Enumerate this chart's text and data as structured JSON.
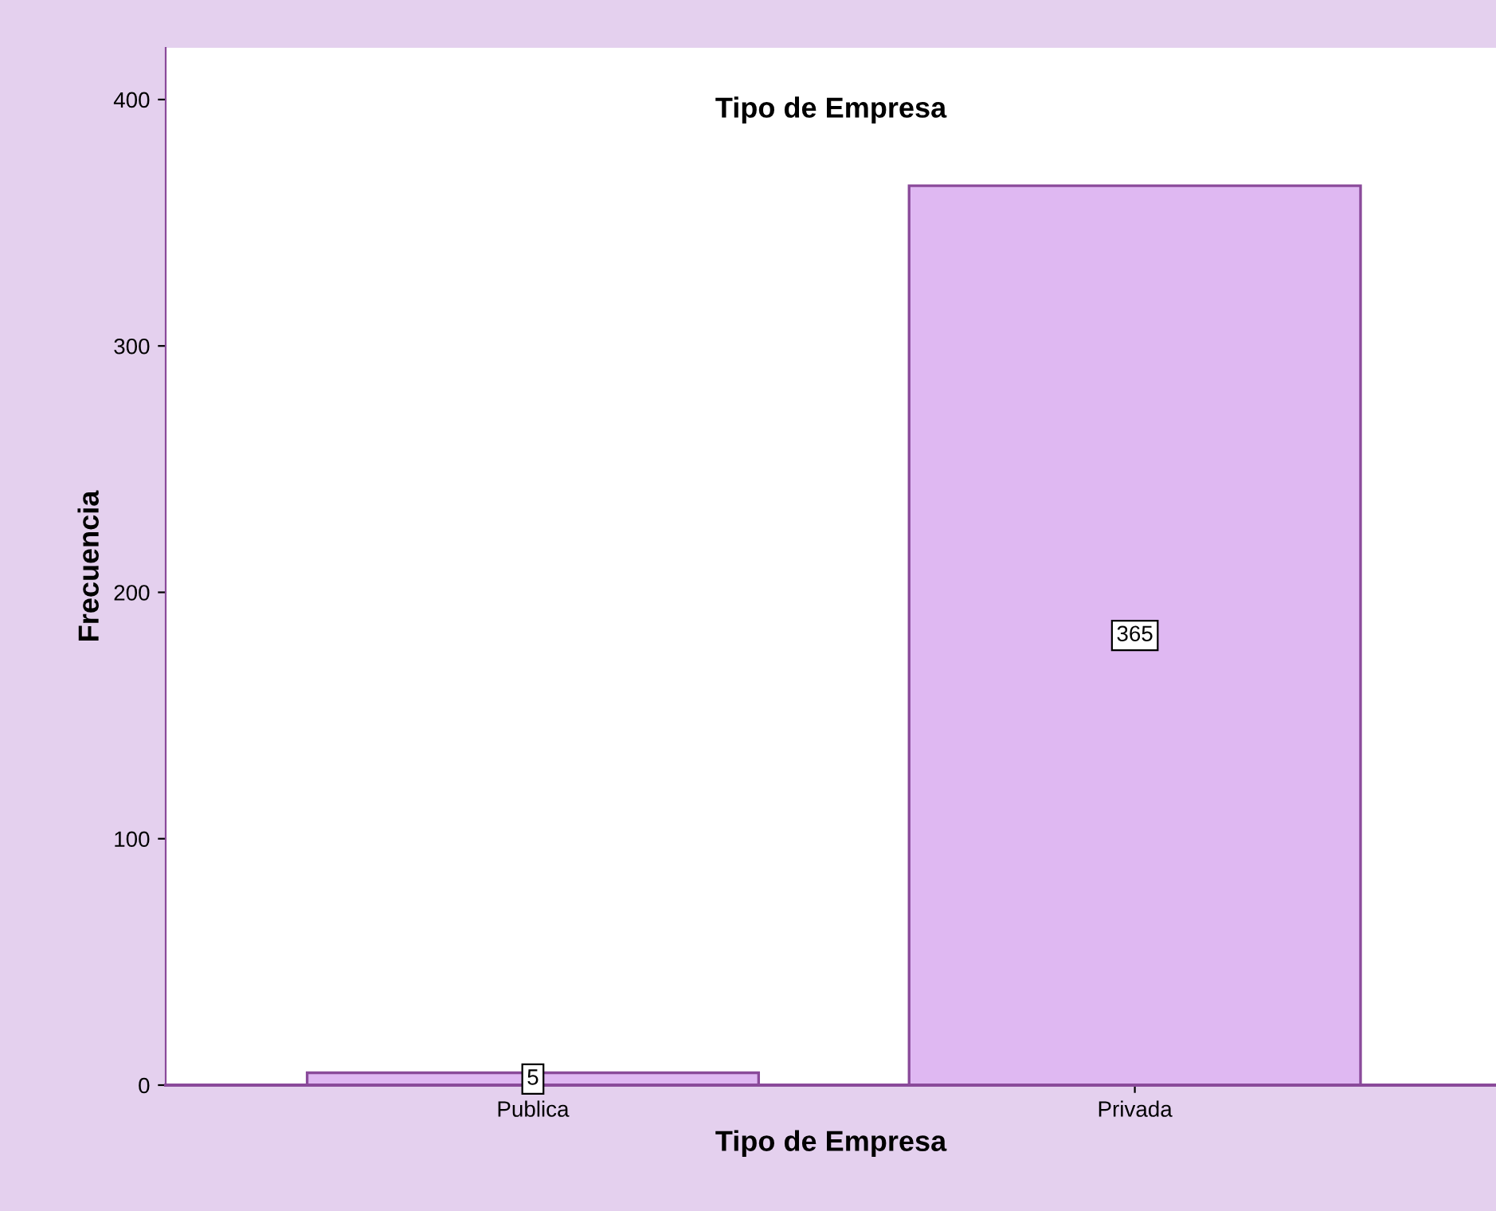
{
  "chart_data": {
    "type": "bar",
    "title": "Tipo de Empresa",
    "xlabel": "Tipo de Empresa",
    "ylabel": "Frecuencia",
    "categories": [
      "Publica",
      "Privada"
    ],
    "values": [
      5,
      365
    ],
    "color": "#dfb8f2",
    "ylim": [
      0,
      421
    ],
    "yticks": [
      0,
      100,
      200,
      300,
      400
    ],
    "grid": false,
    "data_labels": true
  }
}
